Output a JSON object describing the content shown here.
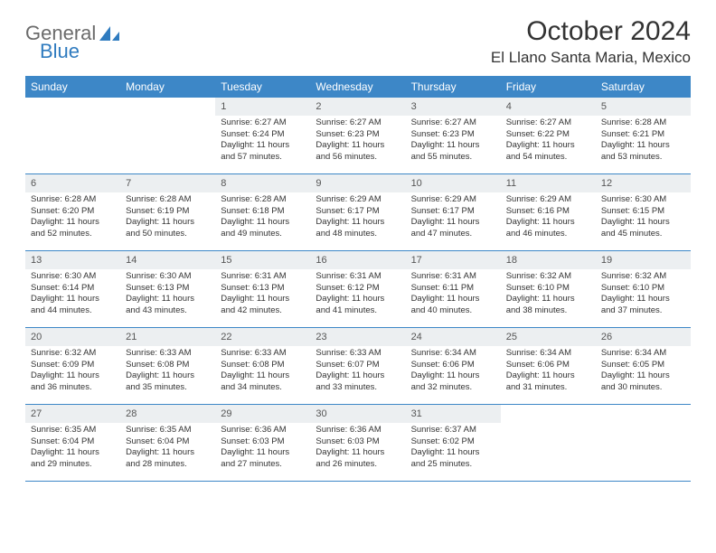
{
  "logo": {
    "general": "General",
    "blue": "Blue"
  },
  "title": "October 2024",
  "location": "El Llano Santa Maria, Mexico",
  "colors": {
    "header_bg": "#3d87c7",
    "header_text": "#ffffff",
    "daynum_bg": "#eceff1",
    "border": "#3d87c7",
    "logo_gray": "#6b6b6b",
    "logo_blue": "#2f7bbf",
    "body_text": "#333333",
    "page_bg": "#ffffff"
  },
  "day_names": [
    "Sunday",
    "Monday",
    "Tuesday",
    "Wednesday",
    "Thursday",
    "Friday",
    "Saturday"
  ],
  "weeks": [
    [
      {
        "n": "",
        "sr": "",
        "ss": "",
        "dl": ""
      },
      {
        "n": "",
        "sr": "",
        "ss": "",
        "dl": ""
      },
      {
        "n": "1",
        "sr": "Sunrise: 6:27 AM",
        "ss": "Sunset: 6:24 PM",
        "dl": "Daylight: 11 hours and 57 minutes."
      },
      {
        "n": "2",
        "sr": "Sunrise: 6:27 AM",
        "ss": "Sunset: 6:23 PM",
        "dl": "Daylight: 11 hours and 56 minutes."
      },
      {
        "n": "3",
        "sr": "Sunrise: 6:27 AM",
        "ss": "Sunset: 6:23 PM",
        "dl": "Daylight: 11 hours and 55 minutes."
      },
      {
        "n": "4",
        "sr": "Sunrise: 6:27 AM",
        "ss": "Sunset: 6:22 PM",
        "dl": "Daylight: 11 hours and 54 minutes."
      },
      {
        "n": "5",
        "sr": "Sunrise: 6:28 AM",
        "ss": "Sunset: 6:21 PM",
        "dl": "Daylight: 11 hours and 53 minutes."
      }
    ],
    [
      {
        "n": "6",
        "sr": "Sunrise: 6:28 AM",
        "ss": "Sunset: 6:20 PM",
        "dl": "Daylight: 11 hours and 52 minutes."
      },
      {
        "n": "7",
        "sr": "Sunrise: 6:28 AM",
        "ss": "Sunset: 6:19 PM",
        "dl": "Daylight: 11 hours and 50 minutes."
      },
      {
        "n": "8",
        "sr": "Sunrise: 6:28 AM",
        "ss": "Sunset: 6:18 PM",
        "dl": "Daylight: 11 hours and 49 minutes."
      },
      {
        "n": "9",
        "sr": "Sunrise: 6:29 AM",
        "ss": "Sunset: 6:17 PM",
        "dl": "Daylight: 11 hours and 48 minutes."
      },
      {
        "n": "10",
        "sr": "Sunrise: 6:29 AM",
        "ss": "Sunset: 6:17 PM",
        "dl": "Daylight: 11 hours and 47 minutes."
      },
      {
        "n": "11",
        "sr": "Sunrise: 6:29 AM",
        "ss": "Sunset: 6:16 PM",
        "dl": "Daylight: 11 hours and 46 minutes."
      },
      {
        "n": "12",
        "sr": "Sunrise: 6:30 AM",
        "ss": "Sunset: 6:15 PM",
        "dl": "Daylight: 11 hours and 45 minutes."
      }
    ],
    [
      {
        "n": "13",
        "sr": "Sunrise: 6:30 AM",
        "ss": "Sunset: 6:14 PM",
        "dl": "Daylight: 11 hours and 44 minutes."
      },
      {
        "n": "14",
        "sr": "Sunrise: 6:30 AM",
        "ss": "Sunset: 6:13 PM",
        "dl": "Daylight: 11 hours and 43 minutes."
      },
      {
        "n": "15",
        "sr": "Sunrise: 6:31 AM",
        "ss": "Sunset: 6:13 PM",
        "dl": "Daylight: 11 hours and 42 minutes."
      },
      {
        "n": "16",
        "sr": "Sunrise: 6:31 AM",
        "ss": "Sunset: 6:12 PM",
        "dl": "Daylight: 11 hours and 41 minutes."
      },
      {
        "n": "17",
        "sr": "Sunrise: 6:31 AM",
        "ss": "Sunset: 6:11 PM",
        "dl": "Daylight: 11 hours and 40 minutes."
      },
      {
        "n": "18",
        "sr": "Sunrise: 6:32 AM",
        "ss": "Sunset: 6:10 PM",
        "dl": "Daylight: 11 hours and 38 minutes."
      },
      {
        "n": "19",
        "sr": "Sunrise: 6:32 AM",
        "ss": "Sunset: 6:10 PM",
        "dl": "Daylight: 11 hours and 37 minutes."
      }
    ],
    [
      {
        "n": "20",
        "sr": "Sunrise: 6:32 AM",
        "ss": "Sunset: 6:09 PM",
        "dl": "Daylight: 11 hours and 36 minutes."
      },
      {
        "n": "21",
        "sr": "Sunrise: 6:33 AM",
        "ss": "Sunset: 6:08 PM",
        "dl": "Daylight: 11 hours and 35 minutes."
      },
      {
        "n": "22",
        "sr": "Sunrise: 6:33 AM",
        "ss": "Sunset: 6:08 PM",
        "dl": "Daylight: 11 hours and 34 minutes."
      },
      {
        "n": "23",
        "sr": "Sunrise: 6:33 AM",
        "ss": "Sunset: 6:07 PM",
        "dl": "Daylight: 11 hours and 33 minutes."
      },
      {
        "n": "24",
        "sr": "Sunrise: 6:34 AM",
        "ss": "Sunset: 6:06 PM",
        "dl": "Daylight: 11 hours and 32 minutes."
      },
      {
        "n": "25",
        "sr": "Sunrise: 6:34 AM",
        "ss": "Sunset: 6:06 PM",
        "dl": "Daylight: 11 hours and 31 minutes."
      },
      {
        "n": "26",
        "sr": "Sunrise: 6:34 AM",
        "ss": "Sunset: 6:05 PM",
        "dl": "Daylight: 11 hours and 30 minutes."
      }
    ],
    [
      {
        "n": "27",
        "sr": "Sunrise: 6:35 AM",
        "ss": "Sunset: 6:04 PM",
        "dl": "Daylight: 11 hours and 29 minutes."
      },
      {
        "n": "28",
        "sr": "Sunrise: 6:35 AM",
        "ss": "Sunset: 6:04 PM",
        "dl": "Daylight: 11 hours and 28 minutes."
      },
      {
        "n": "29",
        "sr": "Sunrise: 6:36 AM",
        "ss": "Sunset: 6:03 PM",
        "dl": "Daylight: 11 hours and 27 minutes."
      },
      {
        "n": "30",
        "sr": "Sunrise: 6:36 AM",
        "ss": "Sunset: 6:03 PM",
        "dl": "Daylight: 11 hours and 26 minutes."
      },
      {
        "n": "31",
        "sr": "Sunrise: 6:37 AM",
        "ss": "Sunset: 6:02 PM",
        "dl": "Daylight: 11 hours and 25 minutes."
      },
      {
        "n": "",
        "sr": "",
        "ss": "",
        "dl": ""
      },
      {
        "n": "",
        "sr": "",
        "ss": "",
        "dl": ""
      }
    ]
  ]
}
